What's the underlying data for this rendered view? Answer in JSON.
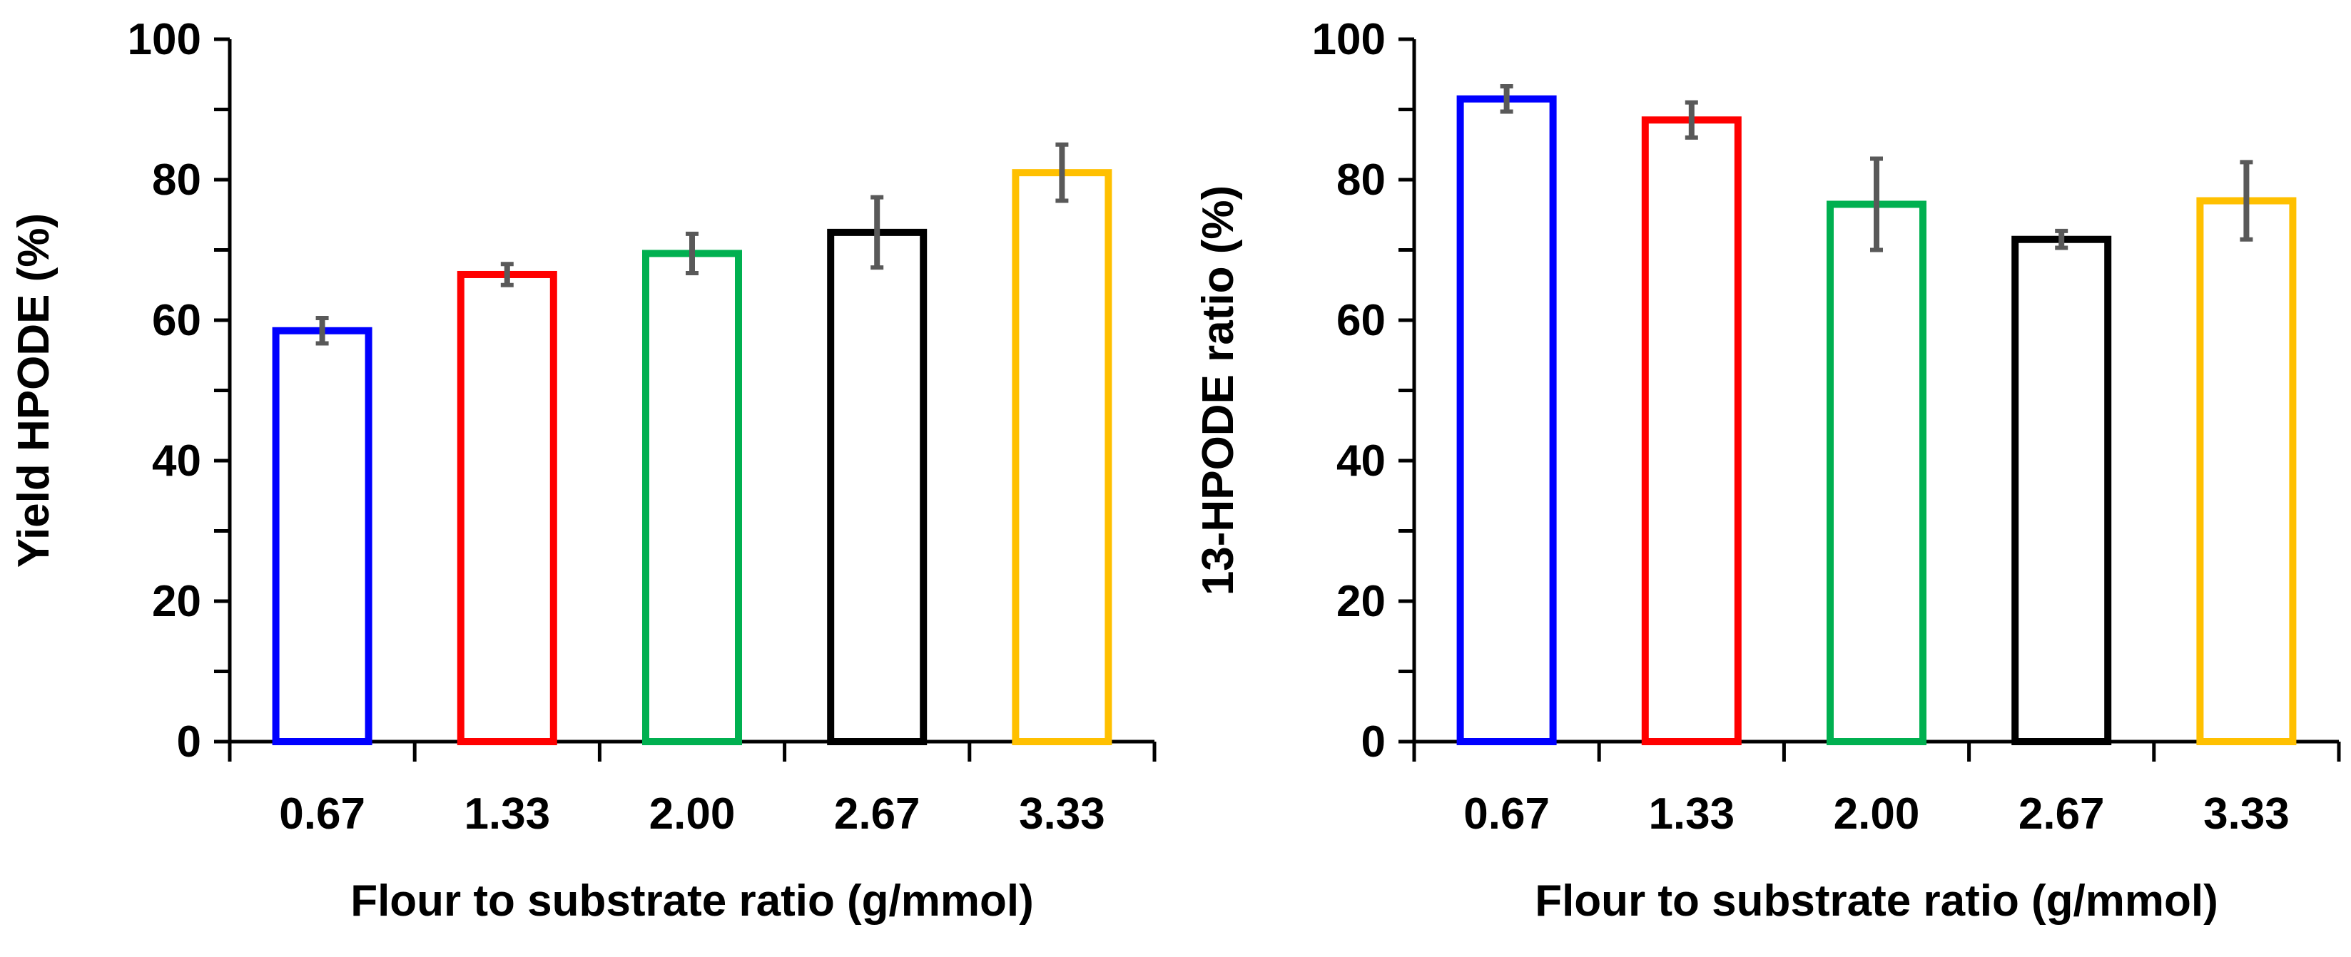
{
  "colors": {
    "axis": "#000000",
    "error_bar": "#595959",
    "bar_outlines": [
      "#0000ff",
      "#ff0000",
      "#00b050",
      "#000000",
      "#ffc000"
    ]
  },
  "chart_data": [
    {
      "type": "bar",
      "style": "outlined bars with error bars",
      "categories": [
        "0.67",
        "1.33",
        "2.00",
        "2.67",
        "3.33"
      ],
      "values": [
        58.5,
        66.5,
        69.5,
        72.5,
        81
      ],
      "errors": [
        1.8,
        1.5,
        2.8,
        5,
        4
      ],
      "title": "",
      "xlabel": "Flour to substrate ratio (g/mmol)",
      "ylabel": "Yield HPODE (%)",
      "ylim": [
        0,
        100
      ],
      "yticks": [
        "0",
        "20",
        "40",
        "60",
        "80",
        "100"
      ],
      "grid": false,
      "legend": "none"
    },
    {
      "type": "bar",
      "style": "outlined bars with error bars",
      "categories": [
        "0.67",
        "1.33",
        "2.00",
        "2.67",
        "3.33"
      ],
      "values": [
        91.5,
        88.5,
        76.5,
        71.5,
        77
      ],
      "errors": [
        1.8,
        2.5,
        6.5,
        1.2,
        5.5
      ],
      "title": "",
      "xlabel": "Flour to substrate ratio (g/mmol)",
      "ylabel": "13-HPODE ratio (%)",
      "ylim": [
        0,
        100
      ],
      "yticks": [
        "0",
        "20",
        "40",
        "60",
        "80",
        "100"
      ],
      "grid": false,
      "legend": "none"
    }
  ]
}
